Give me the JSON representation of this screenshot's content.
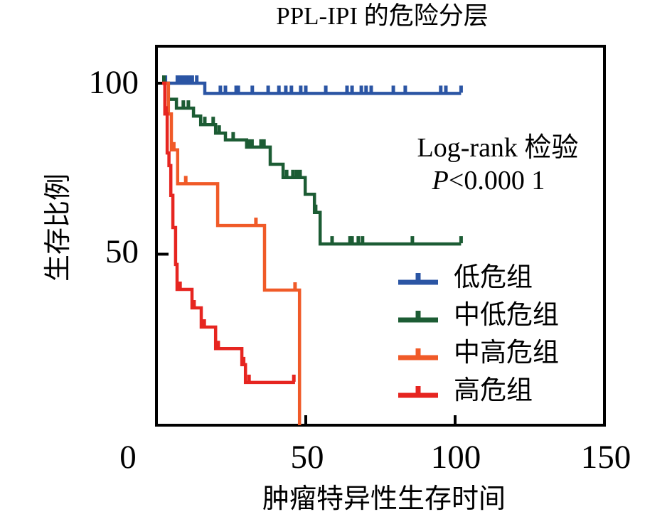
{
  "chart_data": {
    "type": "line",
    "subtype": "kaplan-meier-step-survival",
    "title": "PPL-IPI 的危险分层",
    "xlabel": "肿瘤特异性生存时间",
    "ylabel": "生存比例",
    "xlim": [
      0,
      150
    ],
    "ylim": [
      0,
      110
    ],
    "grid": false,
    "legend_position": "lower right inside plot",
    "x_ticks": [
      {
        "value": 0,
        "label": "0"
      },
      {
        "value": 50,
        "label": "50"
      },
      {
        "value": 100,
        "label": "100"
      },
      {
        "value": 150,
        "label": "150"
      }
    ],
    "y_ticks": [
      {
        "value": 50,
        "label": "50"
      },
      {
        "value": 100,
        "label": "100"
      }
    ],
    "annotation": {
      "line1": "Log-rank 检验",
      "p_var": "P",
      "p_rest": "<0.000 1"
    },
    "series": [
      {
        "name": "低危组",
        "color": "#2b55a4",
        "steps": [
          [
            2,
            100
          ],
          [
            16.2,
            97
          ]
        ],
        "end": 102,
        "censors": [
          [
            3,
            100
          ],
          [
            7,
            100
          ],
          [
            8,
            100
          ],
          [
            9,
            100
          ],
          [
            10,
            100
          ],
          [
            11,
            100
          ],
          [
            12,
            100
          ],
          [
            13.5,
            100
          ],
          [
            21.4,
            97
          ],
          [
            23.1,
            97
          ],
          [
            26.7,
            97
          ],
          [
            27.4,
            97
          ],
          [
            32.1,
            97
          ],
          [
            37.4,
            97
          ],
          [
            41,
            97
          ],
          [
            43.3,
            97
          ],
          [
            45.2,
            97
          ],
          [
            48.3,
            97
          ],
          [
            50,
            97
          ],
          [
            56.7,
            97
          ],
          [
            63.8,
            97
          ],
          [
            65.5,
            97
          ],
          [
            68.6,
            97
          ],
          [
            70.2,
            97
          ],
          [
            71.9,
            97
          ],
          [
            79.3,
            97
          ],
          [
            83.3,
            97
          ],
          [
            95.2,
            97
          ],
          [
            96.9,
            97
          ],
          [
            102,
            97
          ]
        ]
      },
      {
        "name": "中低危组",
        "color": "#1c5c34",
        "steps": [
          [
            2,
            100
          ],
          [
            4,
            95.3
          ],
          [
            6.7,
            92.7
          ],
          [
            12.4,
            90.4
          ],
          [
            14.8,
            87.9
          ],
          [
            19.8,
            85.4
          ],
          [
            23.1,
            83.4
          ],
          [
            30.2,
            81.3
          ],
          [
            38.1,
            76.3
          ],
          [
            42.4,
            72.4
          ],
          [
            49.8,
            67.5
          ],
          [
            52.9,
            62.2
          ],
          [
            54.8,
            53
          ]
        ],
        "end": 102,
        "censors": [
          [
            2.5,
            100
          ],
          [
            9,
            92.7
          ],
          [
            10.7,
            92.7
          ],
          [
            16.2,
            87.9
          ],
          [
            19,
            87.9
          ],
          [
            21,
            85.4
          ],
          [
            25.7,
            83.4
          ],
          [
            31,
            81.3
          ],
          [
            32,
            81.3
          ],
          [
            35,
            81.3
          ],
          [
            36,
            81.3
          ],
          [
            43.6,
            72.4
          ],
          [
            45.7,
            72.4
          ],
          [
            46.9,
            72.4
          ],
          [
            48.1,
            72.4
          ],
          [
            53.3,
            62.2
          ],
          [
            58.8,
            53
          ],
          [
            64.8,
            53
          ],
          [
            65.5,
            53
          ],
          [
            67.6,
            53
          ],
          [
            69,
            53
          ],
          [
            85.7,
            53
          ],
          [
            102,
            53
          ]
        ]
      },
      {
        "name": "中高危组",
        "color": "#f05a28",
        "steps": [
          [
            2,
            100
          ],
          [
            4,
            91
          ],
          [
            5,
            80.5
          ],
          [
            7.1,
            70.6
          ],
          [
            20.5,
            58.4
          ],
          [
            36.2,
            39.5
          ],
          [
            47.9,
            0
          ]
        ],
        "end": 47.9,
        "censors": [
          [
            5.8,
            80.5
          ],
          [
            9.8,
            70.6
          ],
          [
            33.3,
            58.4
          ],
          [
            46.4,
            39.5
          ]
        ]
      },
      {
        "name": "高危组",
        "color": "#e62520",
        "steps": [
          [
            1.9,
            100
          ],
          [
            2.8,
            91
          ],
          [
            3.6,
            79.6
          ],
          [
            4.2,
            75.9
          ],
          [
            4.8,
            67.2
          ],
          [
            5.5,
            57.8
          ],
          [
            6.4,
            47
          ],
          [
            6.9,
            39.7
          ],
          [
            11.9,
            34.3
          ],
          [
            15,
            28.7
          ],
          [
            19.8,
            22.4
          ],
          [
            28.6,
            17.7
          ],
          [
            29.8,
            12.5
          ]
        ],
        "end": 46.4,
        "censors": [
          [
            3.2,
            91
          ],
          [
            7.9,
            39.7
          ],
          [
            12.6,
            34.3
          ],
          [
            16,
            28.7
          ],
          [
            20.7,
            22.4
          ],
          [
            29.2,
            17.7
          ],
          [
            31,
            12.5
          ],
          [
            46,
            12.5
          ]
        ]
      }
    ]
  }
}
